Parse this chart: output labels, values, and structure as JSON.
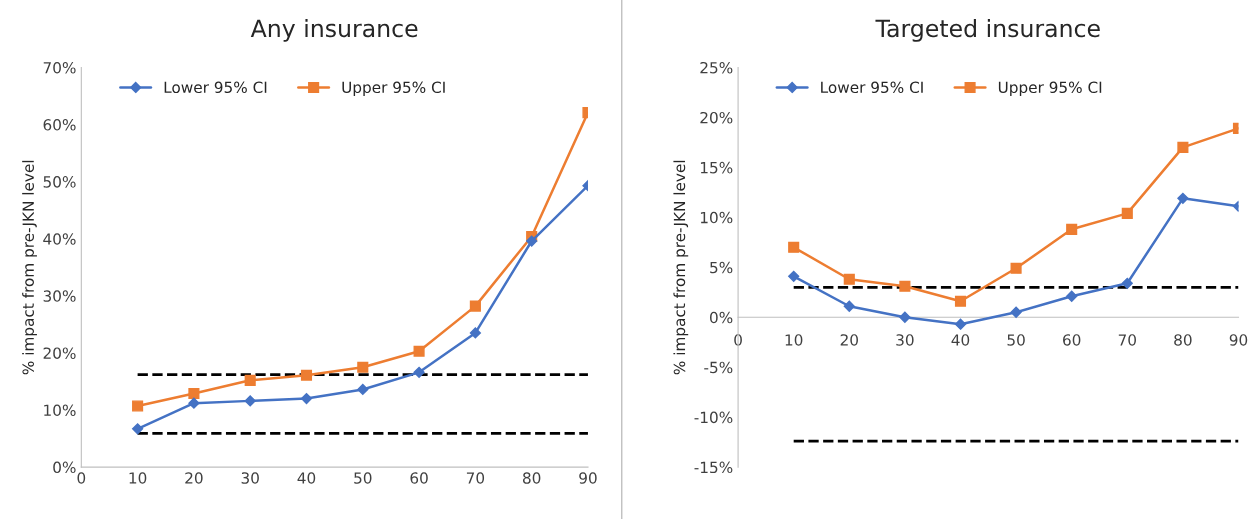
{
  "chart_data": [
    {
      "type": "line",
      "title": "Any insurance",
      "ylabel": "% impact from pre-JKN level",
      "x": [
        10,
        20,
        30,
        40,
        50,
        60,
        70,
        80,
        90
      ],
      "xlim": [
        0,
        90
      ],
      "xticks": [
        0,
        10,
        20,
        30,
        40,
        50,
        60,
        70,
        80,
        90
      ],
      "ylim": [
        0,
        70
      ],
      "yticks": [
        {
          "value": 0,
          "label": "0%"
        },
        {
          "value": 10,
          "label": "10%"
        },
        {
          "value": 20,
          "label": "20%"
        },
        {
          "value": 30,
          "label": "30%"
        },
        {
          "value": 40,
          "label": "40%"
        },
        {
          "value": 50,
          "label": "50%"
        },
        {
          "value": 60,
          "label": "60%"
        },
        {
          "value": 70,
          "label": "70%"
        }
      ],
      "grid": false,
      "legend": "top left",
      "series": [
        {
          "name": "Lower 95% CI",
          "color": "#4472c4",
          "marker": "diamond",
          "values": [
            6.7,
            11.2,
            11.6,
            12.0,
            13.6,
            16.6,
            23.5,
            39.6,
            49.3
          ]
        },
        {
          "name": "Upper 95% CI",
          "color": "#ed7d31",
          "marker": "square",
          "values": [
            10.7,
            12.9,
            15.2,
            16.1,
            17.5,
            20.3,
            28.2,
            40.4,
            62.1
          ]
        }
      ],
      "ref_lines": [
        {
          "axis": "y",
          "value": 16.2,
          "color": "#000000",
          "line_style": "dashed"
        },
        {
          "axis": "y",
          "value": 5.9,
          "color": "#000000",
          "line_style": "dashed"
        }
      ]
    },
    {
      "type": "line",
      "title": "Targeted insurance",
      "ylabel": "% impact from pre-JKN level",
      "x": [
        10,
        20,
        30,
        40,
        50,
        60,
        70,
        80,
        90
      ],
      "xlim": [
        0,
        90
      ],
      "xticks": [
        0,
        10,
        20,
        30,
        40,
        50,
        60,
        70,
        80,
        90
      ],
      "ylim": [
        -15,
        25
      ],
      "yticks": [
        {
          "value": -15,
          "label": "-15%"
        },
        {
          "value": -10,
          "label": "-10%"
        },
        {
          "value": -5,
          "label": "-5%"
        },
        {
          "value": 0,
          "label": "0%"
        },
        {
          "value": 5,
          "label": "5%"
        },
        {
          "value": 10,
          "label": "10%"
        },
        {
          "value": 15,
          "label": "15%"
        },
        {
          "value": 20,
          "label": "20%"
        },
        {
          "value": 25,
          "label": "25%"
        }
      ],
      "grid": false,
      "legend": "top left",
      "series": [
        {
          "name": "Lower 95% CI",
          "color": "#4472c4",
          "marker": "diamond",
          "values": [
            4.1,
            1.1,
            0.0,
            -0.7,
            0.5,
            2.1,
            3.4,
            11.9,
            11.1
          ]
        },
        {
          "name": "Upper 95% CI",
          "color": "#ed7d31",
          "marker": "square",
          "values": [
            7.0,
            3.8,
            3.1,
            1.6,
            4.9,
            8.8,
            10.4,
            17.0,
            18.9
          ]
        }
      ],
      "ref_lines": [
        {
          "axis": "y",
          "value": 3.0,
          "color": "#000000",
          "line_style": "dashed"
        },
        {
          "axis": "y",
          "value": -12.4,
          "color": "#000000",
          "line_style": "dashed"
        }
      ]
    }
  ]
}
